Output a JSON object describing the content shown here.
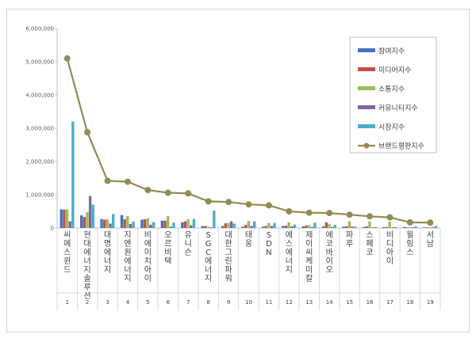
{
  "chart_data": {
    "type": "bar",
    "title": "",
    "xlabel": "",
    "ylabel": "",
    "ylim": [
      0,
      6000000
    ],
    "y_ticks": [
      "0",
      "1,000,000",
      "2,000,000",
      "3,000,000",
      "4,000,000",
      "5,000,000",
      "6,000,000"
    ],
    "grid": false,
    "legend_position": "right",
    "ranks": [
      "1",
      "2",
      "3",
      "4",
      "5",
      "6",
      "7",
      "8",
      "9",
      "10",
      "11",
      "12",
      "13",
      "14",
      "15",
      "16",
      "17",
      "18",
      "19"
    ],
    "categories": [
      "씨에스윈드",
      "현대에너지솔루션",
      "대명에너지",
      "지엔원에너지",
      "비에이치아이",
      "오르비텍",
      "유니슨",
      "SGC에너지",
      "대한그린파워",
      "태웅",
      "SDN",
      "에스에너지",
      "제이씨케미칼",
      "에코바이오",
      "파루",
      "스페코",
      "비디아이",
      "윌링스",
      "서남"
    ],
    "series": [
      {
        "name": "참여지수",
        "kind": "bar",
        "color": "#4472c4",
        "values": [
          560000,
          380000,
          270000,
          390000,
          250000,
          220000,
          170000,
          60000,
          60000,
          40000,
          40000,
          60000,
          50000,
          50000,
          40000,
          30000,
          30000,
          30000,
          20000
        ]
      },
      {
        "name": "미디어지수",
        "kind": "bar",
        "color": "#c0504d",
        "values": [
          550000,
          330000,
          250000,
          260000,
          260000,
          220000,
          200000,
          60000,
          140000,
          90000,
          60000,
          70000,
          70000,
          170000,
          50000,
          50000,
          30000,
          20000,
          20000
        ]
      },
      {
        "name": "소통지수",
        "kind": "bar",
        "color": "#9bbb59",
        "values": [
          560000,
          480000,
          260000,
          360000,
          290000,
          360000,
          260000,
          40000,
          150000,
          210000,
          150000,
          170000,
          80000,
          120000,
          200000,
          200000,
          190000,
          20000,
          20000
        ]
      },
      {
        "name": "커뮤니티지수",
        "kind": "bar",
        "color": "#8064a2",
        "values": [
          200000,
          960000,
          130000,
          120000,
          100000,
          40000,
          80000,
          20000,
          200000,
          60000,
          60000,
          50000,
          30000,
          30000,
          40000,
          20000,
          20000,
          20000,
          20000
        ]
      },
      {
        "name": "시장지수",
        "kind": "bar",
        "color": "#4bacc6",
        "values": [
          3200000,
          700000,
          420000,
          190000,
          180000,
          160000,
          270000,
          520000,
          130000,
          200000,
          150000,
          100000,
          160000,
          90000,
          40000,
          30000,
          30000,
          50000,
          60000
        ]
      },
      {
        "name": "브랜드평판지수",
        "kind": "line",
        "color": "#948a54",
        "values": [
          5100000,
          2880000,
          1420000,
          1390000,
          1140000,
          1060000,
          1040000,
          800000,
          780000,
          710000,
          680000,
          500000,
          460000,
          450000,
          400000,
          350000,
          320000,
          170000,
          160000
        ]
      }
    ]
  }
}
